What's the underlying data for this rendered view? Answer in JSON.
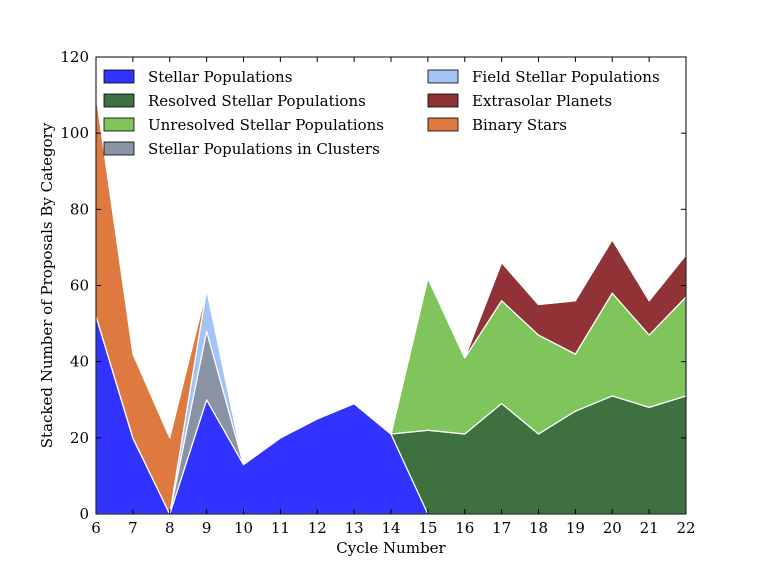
{
  "chart_data": {
    "type": "area",
    "stacked": true,
    "title": "",
    "xlabel": "Cycle Number",
    "ylabel": "Stacked Number of Proposals By Category",
    "x": [
      6,
      7,
      8,
      9,
      10,
      11,
      12,
      13,
      14,
      15,
      16,
      17,
      18,
      19,
      20,
      21,
      22
    ],
    "xlim": [
      6,
      22
    ],
    "ylim": [
      0,
      120
    ],
    "xticks": [
      "6",
      "7",
      "8",
      "9",
      "10",
      "11",
      "12",
      "13",
      "14",
      "15",
      "16",
      "17",
      "18",
      "19",
      "20",
      "21",
      "22"
    ],
    "yticks": [
      "0",
      "20",
      "40",
      "60",
      "80",
      "100",
      "120"
    ],
    "grid": false,
    "legend_position": "top",
    "series": [
      {
        "name": "Stellar Populations",
        "color": "#3333ff",
        "values": [
          52,
          20,
          0,
          30,
          13,
          20,
          25,
          29,
          21,
          0,
          0,
          0,
          0,
          0,
          0,
          0,
          0
        ]
      },
      {
        "name": "Resolved Stellar Populations",
        "color": "#3f7040",
        "values": [
          0,
          0,
          0,
          0,
          0,
          0,
          0,
          0,
          0,
          22,
          21,
          29,
          21,
          27,
          31,
          28,
          31
        ]
      },
      {
        "name": "Unresolved Stellar Populations",
        "color": "#80c45c",
        "values": [
          0,
          0,
          0,
          0,
          0,
          0,
          0,
          0,
          0,
          40,
          20,
          27,
          26,
          15,
          27,
          19,
          26
        ]
      },
      {
        "name": "Stellar Populations in Clusters",
        "color": "#8a93a3",
        "values": [
          0,
          0,
          0,
          18,
          0,
          0,
          0,
          0,
          0,
          0,
          0,
          0,
          0,
          0,
          0,
          0,
          0
        ]
      },
      {
        "name": "Field Stellar Populations",
        "color": "#a3c4f5",
        "values": [
          0,
          0,
          0,
          11,
          0,
          0,
          0,
          0,
          0,
          0,
          0,
          0,
          0,
          0,
          0,
          0,
          0
        ]
      },
      {
        "name": "Extrasolar Planets",
        "color": "#903236",
        "values": [
          0,
          0,
          0,
          0,
          0,
          0,
          0,
          0,
          0,
          0,
          0,
          10,
          8,
          14,
          14,
          9,
          11
        ]
      },
      {
        "name": "Binary Stars",
        "color": "#de7a3f",
        "values": [
          58,
          22,
          20,
          0,
          0,
          0,
          0,
          0,
          0,
          0,
          0,
          0,
          0,
          0,
          0,
          0,
          0
        ]
      }
    ]
  }
}
